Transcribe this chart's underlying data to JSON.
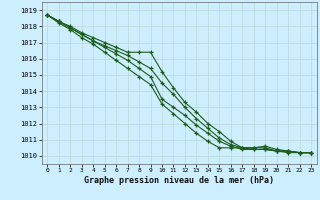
{
  "title": "",
  "xlabel": "Graphe pression niveau de la mer (hPa)",
  "bg_color": "#cceeff",
  "grid_color": "#b8d8d8",
  "line_color": "#1a5c1a",
  "marker": "+",
  "markersize": 3.5,
  "linewidth": 0.8,
  "ylim": [
    1009.5,
    1019.5
  ],
  "xlim": [
    -0.5,
    23.5
  ],
  "yticks": [
    1010,
    1011,
    1012,
    1013,
    1014,
    1015,
    1016,
    1017,
    1018,
    1019
  ],
  "xtick_labels": [
    "0",
    "1",
    "2",
    "3",
    "4",
    "5",
    "6",
    "7",
    "8",
    "9",
    "10",
    "11",
    "12",
    "13",
    "14",
    "15",
    "16",
    "17",
    "18",
    "19",
    "20",
    "21",
    "22",
    "23"
  ],
  "xticks": [
    0,
    1,
    2,
    3,
    4,
    5,
    6,
    7,
    8,
    9,
    10,
    11,
    12,
    13,
    14,
    15,
    16,
    17,
    18,
    19,
    20,
    21,
    22,
    23
  ],
  "series": [
    [
      1018.7,
      1018.3,
      1018.0,
      1017.6,
      1017.3,
      1017.0,
      1016.7,
      1016.4,
      1016.4,
      1016.4,
      1015.2,
      1014.2,
      1013.3,
      1012.7,
      1012.0,
      1011.5,
      1010.9,
      1010.5,
      1010.5,
      1010.5,
      1010.3,
      1010.3,
      1010.2,
      1010.2
    ],
    [
      1018.7,
      1018.3,
      1017.9,
      1017.5,
      1017.1,
      1016.8,
      1016.5,
      1016.2,
      1015.8,
      1015.4,
      1014.5,
      1013.8,
      1013.0,
      1012.3,
      1011.7,
      1011.1,
      1010.7,
      1010.5,
      1010.4,
      1010.4,
      1010.3,
      1010.2,
      1010.2,
      1010.2
    ],
    [
      1018.7,
      1018.3,
      1017.9,
      1017.5,
      1017.1,
      1016.7,
      1016.3,
      1015.9,
      1015.4,
      1014.9,
      1013.5,
      1013.0,
      1012.5,
      1011.9,
      1011.4,
      1010.9,
      1010.6,
      1010.4,
      1010.4,
      1010.4,
      1010.3,
      1010.3,
      1010.2,
      1010.2
    ],
    [
      1018.7,
      1018.2,
      1017.8,
      1017.3,
      1016.9,
      1016.4,
      1015.9,
      1015.4,
      1014.9,
      1014.4,
      1013.2,
      1012.6,
      1012.0,
      1011.4,
      1010.9,
      1010.5,
      1010.5,
      1010.5,
      1010.5,
      1010.6,
      1010.4,
      1010.3,
      1010.2,
      1010.2
    ]
  ]
}
